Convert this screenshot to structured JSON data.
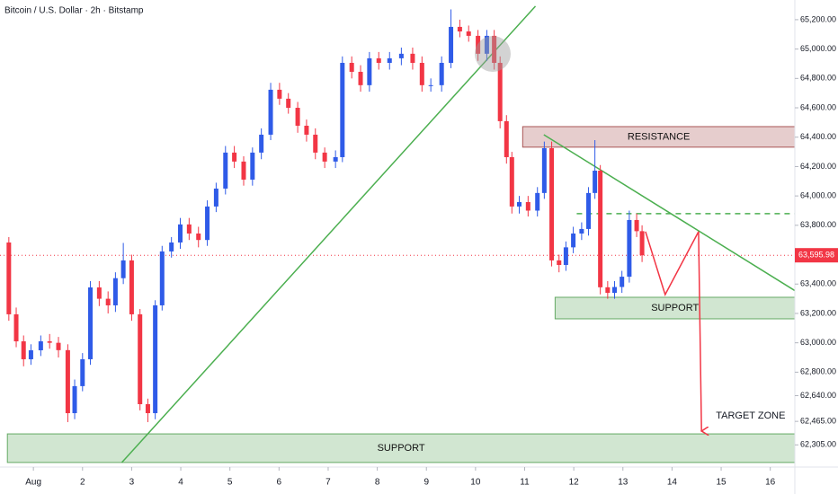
{
  "chart_data": {
    "type": "candlestick",
    "title": "Bitcoin / U.S. Dollar · 2h · Bitstamp",
    "up_color": "#2f5be8",
    "down_color": "#f23645",
    "x": [
      0.5,
      0.65,
      0.8,
      0.95,
      1.15,
      1.33,
      1.51,
      1.7,
      1.84,
      2.0,
      2.16,
      2.34,
      2.52,
      2.67,
      2.83,
      3.0,
      3.17,
      3.33,
      3.48,
      3.62,
      3.81,
      3.99,
      4.17,
      4.36,
      4.54,
      4.72,
      4.91,
      5.09,
      5.28,
      5.46,
      5.64,
      5.83,
      6.01,
      6.19,
      6.38,
      6.56,
      6.74,
      6.93,
      7.15,
      7.29,
      7.48,
      7.66,
      7.84,
      8.03,
      8.25,
      8.49,
      8.72,
      8.91,
      9.09,
      9.31,
      9.5,
      9.68,
      9.86,
      10.05,
      10.23,
      10.38,
      10.5,
      10.63,
      10.74,
      10.89,
      11.07,
      11.26,
      11.4,
      11.55,
      11.7,
      11.84,
      11.99,
      12.16,
      12.3,
      12.43,
      12.54,
      12.69,
      12.83,
      12.98,
      13.13,
      13.28,
      13.39
    ],
    "open": [
      63683,
      63194,
      63010,
      62888,
      62949,
      63010,
      63000,
      62950,
      62521,
      62705,
      62888,
      63377,
      63300,
      63255,
      63440,
      63561,
      63194,
      62582,
      62521,
      63255,
      63622,
      63683,
      63806,
      63744,
      63700,
      63928,
      64050,
      64295,
      64234,
      64111,
      64295,
      64417,
      64723,
      64662,
      64600,
      64478,
      64417,
      64295,
      64234,
      64264,
      64906,
      64845,
      64754,
      64937,
      64906,
      64937,
      64968,
      64906,
      64754,
      64754,
      64906,
      65151,
      65120,
      65090,
      64968,
      65090,
      64906,
      64509,
      64264,
      63928,
      63958,
      63900,
      64020,
      64325,
      63561,
      63530,
      63650,
      63744,
      63775,
      64020,
      64172,
      63378,
      63340,
      63380,
      63450,
      63836,
      63760
    ],
    "high": [
      63720,
      63240,
      63050,
      62990,
      63050,
      63060,
      63040,
      62990,
      62750,
      62930,
      63420,
      63420,
      63350,
      63480,
      63680,
      63600,
      63230,
      62620,
      63290,
      63660,
      63720,
      63850,
      63850,
      63790,
      63970,
      64090,
      64340,
      64340,
      64270,
      64330,
      64460,
      64770,
      64770,
      64700,
      64640,
      64520,
      64460,
      64330,
      64310,
      64950,
      64950,
      64890,
      64980,
      64980,
      64980,
      65010,
      65010,
      64950,
      64800,
      64950,
      65270,
      65200,
      65160,
      65130,
      65130,
      65130,
      64950,
      64550,
      64300,
      64000,
      64000,
      64060,
      64370,
      64370,
      63600,
      63690,
      63790,
      63820,
      64060,
      64380,
      64210,
      63420,
      63420,
      63490,
      63900,
      63880,
      63800
    ],
    "low": [
      63150,
      62970,
      62840,
      62850,
      62910,
      62960,
      62900,
      62460,
      62480,
      62670,
      62850,
      63250,
      63200,
      63210,
      63400,
      63150,
      62540,
      62460,
      62480,
      63220,
      63580,
      63640,
      63700,
      63650,
      63660,
      63890,
      64010,
      64190,
      64070,
      64070,
      64250,
      64380,
      64620,
      64560,
      64430,
      64370,
      64250,
      64190,
      64190,
      64230,
      64800,
      64710,
      64710,
      64860,
      64860,
      64890,
      64860,
      64710,
      64710,
      64710,
      64870,
      65080,
      65050,
      64920,
      64920,
      64860,
      64460,
      64220,
      63880,
      63880,
      63860,
      63860,
      63980,
      63520,
      63480,
      63490,
      63610,
      63700,
      63730,
      63980,
      63330,
      63300,
      63300,
      63340,
      63410,
      63720,
      63550
    ],
    "close": [
      63194,
      63010,
      62888,
      62949,
      63010,
      63000,
      62950,
      62521,
      62705,
      62888,
      63377,
      63300,
      63255,
      63440,
      63561,
      63194,
      62582,
      62521,
      63255,
      63622,
      63683,
      63806,
      63744,
      63700,
      63928,
      64050,
      64295,
      64234,
      64111,
      64295,
      64417,
      64723,
      64662,
      64600,
      64478,
      64417,
      64295,
      64234,
      64264,
      64906,
      64845,
      64754,
      64937,
      64906,
      64937,
      64968,
      64906,
      64754,
      64754,
      64906,
      65151,
      65120,
      65090,
      64968,
      65090,
      64906,
      64509,
      64264,
      63928,
      63958,
      63900,
      64020,
      64325,
      63561,
      63530,
      63650,
      63744,
      63775,
      64020,
      64172,
      63378,
      63340,
      63380,
      63450,
      63836,
      63760,
      63596
    ],
    "last_price": {
      "value": 63595.98,
      "label": "63,595.98"
    },
    "xlim": [
      0.32,
      16.5
    ],
    "ylim": [
      62154,
      65334
    ],
    "xticks": [
      {
        "value": 1,
        "label": "Aug"
      },
      2,
      3,
      4,
      5,
      6,
      7,
      8,
      9,
      10,
      11,
      12,
      13,
      14,
      15,
      16
    ],
    "yticks": [
      {
        "value": 65200,
        "label": "65,200.00"
      },
      {
        "value": 65000,
        "label": "65,000.00"
      },
      {
        "value": 64800,
        "label": "64,800.00"
      },
      {
        "value": 64600,
        "label": "64,600.00"
      },
      {
        "value": 64400,
        "label": "64,400.00"
      },
      {
        "value": 64200,
        "label": "64,200.00"
      },
      {
        "value": 64000,
        "label": "64,000.00"
      },
      {
        "value": 63800,
        "label": "63,800.00"
      },
      {
        "value": 63400,
        "label": "63,400.00"
      },
      {
        "value": 63200,
        "label": "63,200.00"
      },
      {
        "value": 63000,
        "label": "63,000.00"
      },
      {
        "value": 62800,
        "label": "62,800.00"
      },
      {
        "value": 62640,
        "label": "62,640.00"
      },
      {
        "value": 62465,
        "label": "62,465.00"
      },
      {
        "value": 62305,
        "label": "62,305.00"
      }
    ],
    "grid": false,
    "zones": [
      {
        "label": "RESISTANCE",
        "x": [
          10.96,
          16.54
        ],
        "y": [
          64332,
          64472
        ],
        "color": "#8b1a1a"
      },
      {
        "label": "SUPPORT",
        "x": [
          11.62,
          16.54
        ],
        "y": [
          63163,
          63310
        ],
        "color": "#2e8b2e"
      },
      {
        "label": "SUPPORT",
        "x": [
          0.47,
          16.54
        ],
        "y": [
          62185,
          62380
        ],
        "color": "#2e8b2e"
      }
    ],
    "lines": [
      {
        "x": [
          2.8,
          11.22
        ],
        "y": [
          62185,
          65292
        ],
        "color": "#4caf50",
        "dashed": false,
        "arrow": false
      },
      {
        "x": [
          11.39,
          16.54
        ],
        "y": [
          64417,
          63347
        ],
        "color": "#4caf50",
        "dashed": false,
        "arrow": false
      },
      {
        "x": [
          12.06,
          16.54
        ],
        "y": [
          63879,
          63879
        ],
        "color": "#4caf50",
        "dashed": true,
        "arrow": false
      },
      {
        "x": [
          13.46,
          13.86,
          14.54,
          14.6
        ],
        "y": [
          63757,
          63328,
          63757,
          62399
        ],
        "color": "#f23645",
        "dashed": false,
        "arrow": true
      }
    ],
    "annotations": [
      {
        "text": "TARGET ZONE",
        "x": 15.6,
        "y": 62503
      }
    ]
  }
}
